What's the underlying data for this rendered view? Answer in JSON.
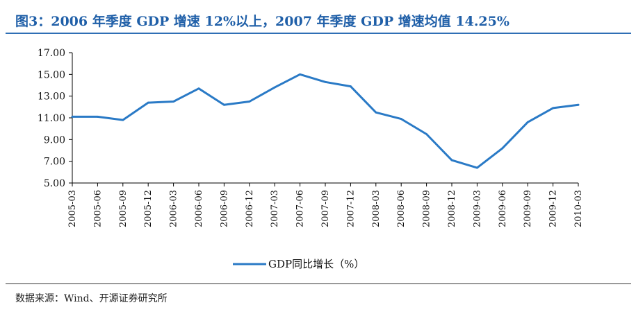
{
  "header": {
    "title": "图3：2006 年季度 GDP 增速 12%以上，2007 年季度 GDP 增速均值 14.25%"
  },
  "footer": {
    "source": "数据来源：Wind、开源证券研究所"
  },
  "colors": {
    "line": "#2a7ac6",
    "title": "#1f5fa8",
    "rule": "#2f6fb5"
  },
  "chart_data": {
    "type": "line",
    "title": "",
    "xlabel": "",
    "ylabel": "",
    "ylim": [
      5.0,
      17.0
    ],
    "yticks": [
      "17.00",
      "15.00",
      "13.00",
      "11.00",
      "9.00",
      "7.00",
      "5.00"
    ],
    "categories": [
      "2005-03",
      "2005-06",
      "2005-09",
      "2005-12",
      "2006-03",
      "2006-06",
      "2006-09",
      "2006-12",
      "2007-03",
      "2007-06",
      "2007-09",
      "2007-12",
      "2008-03",
      "2008-06",
      "2008-09",
      "2008-12",
      "2009-03",
      "2009-06",
      "2009-09",
      "2009-12",
      "2010-03"
    ],
    "series": [
      {
        "name": "GDP同比增长（%）",
        "values": [
          11.1,
          11.1,
          10.8,
          12.4,
          12.5,
          13.7,
          12.2,
          12.5,
          13.8,
          15.0,
          14.3,
          13.9,
          11.5,
          10.9,
          9.5,
          7.1,
          6.4,
          8.2,
          10.6,
          11.9,
          12.2
        ]
      }
    ],
    "legend": "bottom",
    "grid": false
  }
}
